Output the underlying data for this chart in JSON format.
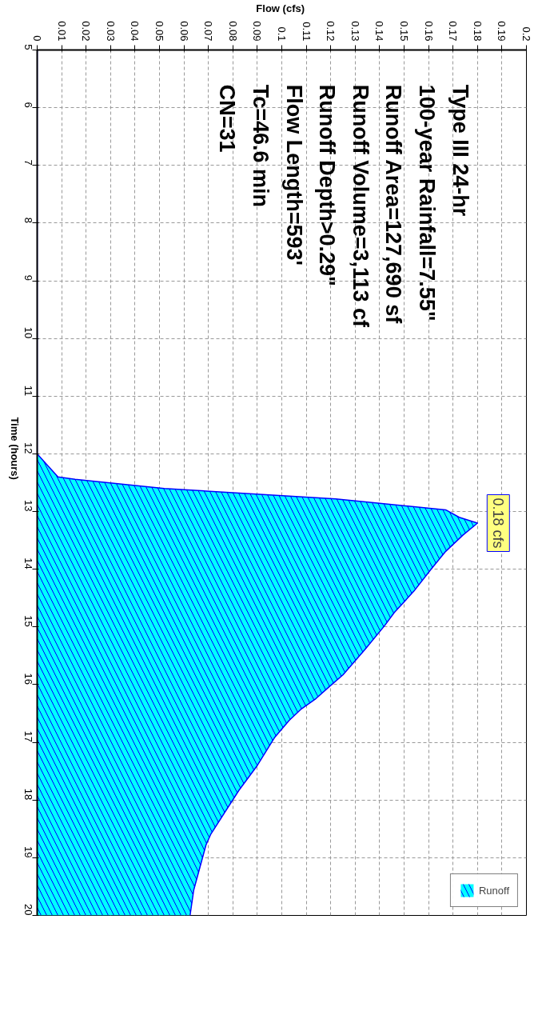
{
  "chart_data": {
    "type": "area",
    "orientation": "horizontal",
    "xlabel": "Flow  (cfs)",
    "ylabel": "Time  (hours)",
    "x": [
      5,
      12.0,
      12.4,
      12.44,
      12.6,
      12.78,
      12.97,
      13.1,
      13.2,
      13.41,
      13.69,
      14.0,
      14.38,
      14.75,
      14.98,
      15.39,
      15.83,
      16.05,
      16.24,
      16.42,
      16.62,
      16.92,
      17.4,
      17.83,
      18.59,
      18.78,
      19.56,
      20.0
    ],
    "series": [
      {
        "name": "Runoff",
        "color": "#00ffff",
        "values": [
          0,
          0,
          0.0085,
          0.0155,
          0.052,
          0.122,
          0.167,
          0.1725,
          0.18,
          0.174,
          0.167,
          0.161,
          0.154,
          0.146,
          0.142,
          0.134,
          0.125,
          0.119,
          0.114,
          0.108,
          0.103,
          0.097,
          0.09,
          0.0825,
          0.071,
          0.069,
          0.064,
          0.0625
        ]
      }
    ],
    "xlim": [
      0,
      0.2
    ],
    "ylim": [
      20,
      5
    ],
    "xticks": [
      0,
      0.01,
      0.02,
      0.03,
      0.04,
      0.05,
      0.06,
      0.07,
      0.08,
      0.09,
      0.1,
      0.11,
      0.12,
      0.13,
      0.14,
      0.15,
      0.16,
      0.17,
      0.18,
      0.19,
      0.2
    ],
    "yticks": [
      5,
      6,
      7,
      8,
      9,
      10,
      11,
      12,
      13,
      14,
      15,
      16,
      17,
      18,
      19,
      20
    ],
    "grid": true,
    "legend": "bottom right",
    "annotations": [
      "Type III 24-hr",
      "100-year Rainfall=7.55\"",
      "Runoff Area=127,690 sf",
      "Runoff Volume=3,113 cf",
      "Runoff Depth>0.29\"",
      "Flow Length=593'",
      "Tc=46.6 min",
      "CN=31",
      {
        "text": "0.18 cfs",
        "x": 0.18,
        "y": 13.2
      }
    ]
  }
}
